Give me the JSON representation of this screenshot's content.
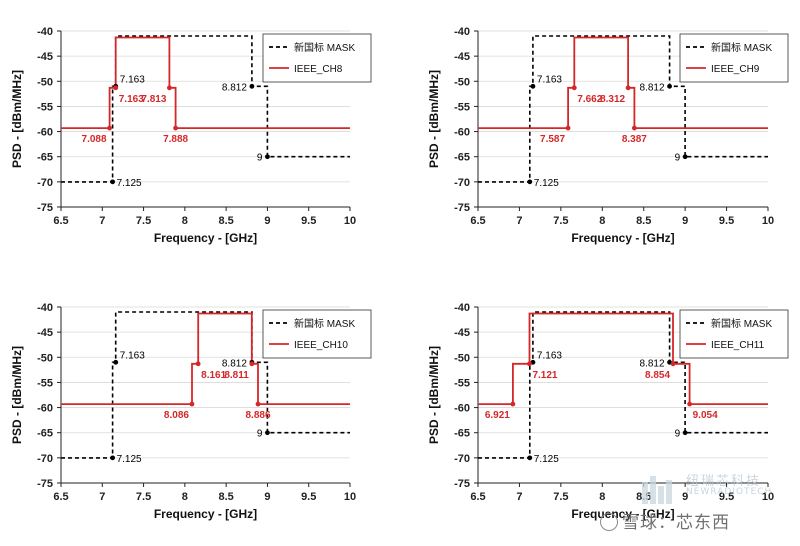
{
  "chart_data": [
    {
      "type": "line",
      "title": "",
      "xlabel": "Frequency - [GHz]",
      "ylabel": "PSD - [dBm/MHz]",
      "xlim": [
        6.5,
        10
      ],
      "ylim": [
        -75,
        -40
      ],
      "xticks": [
        "6.5",
        "7",
        "7.5",
        "8",
        "8.5",
        "9",
        "9.5",
        "10"
      ],
      "yticks": [
        "-40",
        "-45",
        "-50",
        "-55",
        "-60",
        "-65",
        "-70",
        "-75"
      ],
      "legend": [
        "新国标 MASK",
        "IEEE_CH8"
      ],
      "series": [
        {
          "name": "新国标 MASK",
          "style": "dashed",
          "color": "#000000",
          "x": [
            6.5,
            7.125,
            7.125,
            7.163,
            7.163,
            8.812,
            8.812,
            9,
            9,
            10
          ],
          "y": [
            -70,
            -70,
            -51,
            -51,
            -41,
            -41,
            -51,
            -51,
            -65,
            -65
          ]
        },
        {
          "name": "IEEE_CH8",
          "style": "solid",
          "color": "#d62728",
          "x": [
            6.5,
            7.088,
            7.088,
            7.163,
            7.163,
            7.813,
            7.813,
            7.888,
            7.888,
            10
          ],
          "y": [
            -59.3,
            -59.3,
            -51.3,
            -51.3,
            -41.3,
            -41.3,
            -51.3,
            -51.3,
            -59.3,
            -59.3
          ]
        }
      ],
      "annotations": [
        {
          "text": "7.163",
          "x": 7.163,
          "y": -51,
          "color": "#000000",
          "pos": "above-right"
        },
        {
          "text": "7.125",
          "x": 7.125,
          "y": -70,
          "color": "#000000",
          "pos": "right"
        },
        {
          "text": "8.812",
          "x": 8.812,
          "y": -51,
          "color": "#000000",
          "pos": "left"
        },
        {
          "text": "9",
          "x": 9,
          "y": -65,
          "color": "#000000",
          "pos": "left"
        },
        {
          "text": "7.163",
          "x": 7.163,
          "y": -51.3,
          "color": "#d62728",
          "pos": "below-right"
        },
        {
          "text": "7.813",
          "x": 7.813,
          "y": -51.3,
          "color": "#d62728",
          "pos": "below-left"
        },
        {
          "text": "7.088",
          "x": 7.088,
          "y": -59.3,
          "color": "#d62728",
          "pos": "below-left"
        },
        {
          "text": "7.888",
          "x": 7.888,
          "y": -59.3,
          "color": "#d62728",
          "pos": "below"
        }
      ]
    },
    {
      "type": "line",
      "title": "",
      "xlabel": "Frequency - [GHz]",
      "ylabel": "PSD - [dBm/MHz]",
      "xlim": [
        6.5,
        10
      ],
      "ylim": [
        -75,
        -40
      ],
      "xticks": [
        "6.5",
        "7",
        "7.5",
        "8",
        "8.5",
        "9",
        "9.5",
        "10"
      ],
      "yticks": [
        "-40",
        "-45",
        "-50",
        "-55",
        "-60",
        "-65",
        "-70",
        "-75"
      ],
      "legend": [
        "新国标 MASK",
        "IEEE_CH9"
      ],
      "series": [
        {
          "name": "新国标 MASK",
          "style": "dashed",
          "color": "#000000",
          "x": [
            6.5,
            7.125,
            7.125,
            7.163,
            7.163,
            8.812,
            8.812,
            9,
            9,
            10
          ],
          "y": [
            -70,
            -70,
            -51,
            -51,
            -41,
            -41,
            -51,
            -51,
            -65,
            -65
          ]
        },
        {
          "name": "IEEE_CH9",
          "style": "solid",
          "color": "#d62728",
          "x": [
            6.5,
            7.587,
            7.587,
            7.662,
            7.662,
            8.312,
            8.312,
            8.387,
            8.387,
            10
          ],
          "y": [
            -59.3,
            -59.3,
            -51.3,
            -51.3,
            -41.3,
            -41.3,
            -51.3,
            -51.3,
            -59.3,
            -59.3
          ]
        }
      ],
      "annotations": [
        {
          "text": "7.163",
          "x": 7.163,
          "y": -51,
          "color": "#000000",
          "pos": "above-right"
        },
        {
          "text": "7.125",
          "x": 7.125,
          "y": -70,
          "color": "#000000",
          "pos": "right"
        },
        {
          "text": "8.812",
          "x": 8.812,
          "y": -51,
          "color": "#000000",
          "pos": "left"
        },
        {
          "text": "9",
          "x": 9,
          "y": -65,
          "color": "#000000",
          "pos": "left"
        },
        {
          "text": "7.662",
          "x": 7.662,
          "y": -51.3,
          "color": "#d62728",
          "pos": "below-right"
        },
        {
          "text": "8.312",
          "x": 8.312,
          "y": -51.3,
          "color": "#d62728",
          "pos": "below-left"
        },
        {
          "text": "7.587",
          "x": 7.587,
          "y": -59.3,
          "color": "#d62728",
          "pos": "below-left"
        },
        {
          "text": "8.387",
          "x": 8.387,
          "y": -59.3,
          "color": "#d62728",
          "pos": "below"
        }
      ]
    },
    {
      "type": "line",
      "title": "",
      "xlabel": "Frequency - [GHz]",
      "ylabel": "PSD - [dBm/MHz]",
      "xlim": [
        6.5,
        10
      ],
      "ylim": [
        -75,
        -40
      ],
      "xticks": [
        "6.5",
        "7",
        "7.5",
        "8",
        "8.5",
        "9",
        "9.5",
        "10"
      ],
      "yticks": [
        "-40",
        "-45",
        "-50",
        "-55",
        "-60",
        "-65",
        "-70",
        "-75"
      ],
      "legend": [
        "新国标 MASK",
        "IEEE_CH10"
      ],
      "series": [
        {
          "name": "新国标 MASK",
          "style": "dashed",
          "color": "#000000",
          "x": [
            6.5,
            7.125,
            7.125,
            7.163,
            7.163,
            8.812,
            8.812,
            9,
            9,
            10
          ],
          "y": [
            -70,
            -70,
            -51,
            -51,
            -41,
            -41,
            -51,
            -51,
            -65,
            -65
          ]
        },
        {
          "name": "IEEE_CH10",
          "style": "solid",
          "color": "#d62728",
          "x": [
            6.5,
            8.086,
            8.086,
            8.161,
            8.161,
            8.811,
            8.811,
            8.886,
            8.886,
            10
          ],
          "y": [
            -59.3,
            -59.3,
            -51.3,
            -51.3,
            -41.3,
            -41.3,
            -51.3,
            -51.3,
            -59.3,
            -59.3
          ]
        }
      ],
      "annotations": [
        {
          "text": "7.163",
          "x": 7.163,
          "y": -51,
          "color": "#000000",
          "pos": "above-right"
        },
        {
          "text": "7.125",
          "x": 7.125,
          "y": -70,
          "color": "#000000",
          "pos": "right"
        },
        {
          "text": "8.812",
          "x": 8.812,
          "y": -51,
          "color": "#000000",
          "pos": "left"
        },
        {
          "text": "9",
          "x": 9,
          "y": -65,
          "color": "#000000",
          "pos": "left"
        },
        {
          "text": "8.161",
          "x": 8.161,
          "y": -51.3,
          "color": "#d62728",
          "pos": "below-right"
        },
        {
          "text": "8.811",
          "x": 8.811,
          "y": -51.3,
          "color": "#d62728",
          "pos": "below-left"
        },
        {
          "text": "8.086",
          "x": 8.086,
          "y": -59.3,
          "color": "#d62728",
          "pos": "below-left"
        },
        {
          "text": "8.886",
          "x": 8.886,
          "y": -59.3,
          "color": "#d62728",
          "pos": "below"
        }
      ]
    },
    {
      "type": "line",
      "title": "",
      "xlabel": "Frequency - [GHz]",
      "ylabel": "PSD - [dBm/MHz]",
      "xlim": [
        6.5,
        10
      ],
      "ylim": [
        -75,
        -40
      ],
      "xticks": [
        "6.5",
        "7",
        "7.5",
        "8",
        "8.5",
        "9",
        "9.5",
        "10"
      ],
      "yticks": [
        "-40",
        "-45",
        "-50",
        "-55",
        "-60",
        "-65",
        "-70",
        "-75"
      ],
      "legend": [
        "新国标 MASK",
        "IEEE_CH11"
      ],
      "series": [
        {
          "name": "新国标 MASK",
          "style": "dashed",
          "color": "#000000",
          "x": [
            6.5,
            7.125,
            7.125,
            7.163,
            7.163,
            8.812,
            8.812,
            9,
            9,
            10
          ],
          "y": [
            -70,
            -70,
            -51,
            -51,
            -41,
            -41,
            -51,
            -51,
            -65,
            -65
          ]
        },
        {
          "name": "IEEE_CH11",
          "style": "solid",
          "color": "#d62728",
          "x": [
            6.5,
            6.921,
            6.921,
            7.121,
            7.121,
            8.854,
            8.854,
            9.054,
            9.054,
            10
          ],
          "y": [
            -59.3,
            -59.3,
            -51.3,
            -51.3,
            -41.3,
            -41.3,
            -51.3,
            -51.3,
            -59.3,
            -59.3
          ]
        }
      ],
      "annotations": [
        {
          "text": "7.163",
          "x": 7.163,
          "y": -51,
          "color": "#000000",
          "pos": "above-right"
        },
        {
          "text": "7.125",
          "x": 7.125,
          "y": -70,
          "color": "#000000",
          "pos": "right"
        },
        {
          "text": "8.812",
          "x": 8.812,
          "y": -51,
          "color": "#000000",
          "pos": "left"
        },
        {
          "text": "9",
          "x": 9,
          "y": -65,
          "color": "#000000",
          "pos": "left"
        },
        {
          "text": "7.121",
          "x": 7.121,
          "y": -51.3,
          "color": "#d62728",
          "pos": "below-right"
        },
        {
          "text": "8.854",
          "x": 8.854,
          "y": -51.3,
          "color": "#d62728",
          "pos": "below-left"
        },
        {
          "text": "6.921",
          "x": 6.921,
          "y": -59.3,
          "color": "#d62728",
          "pos": "below-left"
        },
        {
          "text": "9.054",
          "x": 9.054,
          "y": -59.3,
          "color": "#d62728",
          "pos": "below-right"
        }
      ]
    }
  ],
  "watermarks": {
    "brand_cn": "纽瑞芯科技",
    "brand_en": "NEWRADIOTECH",
    "social": "雪球：芯东西"
  },
  "colors": {
    "mask": "#000000",
    "ieee": "#d62728",
    "grid": "#d9d9d9",
    "watermark": "#b8c8d4"
  }
}
